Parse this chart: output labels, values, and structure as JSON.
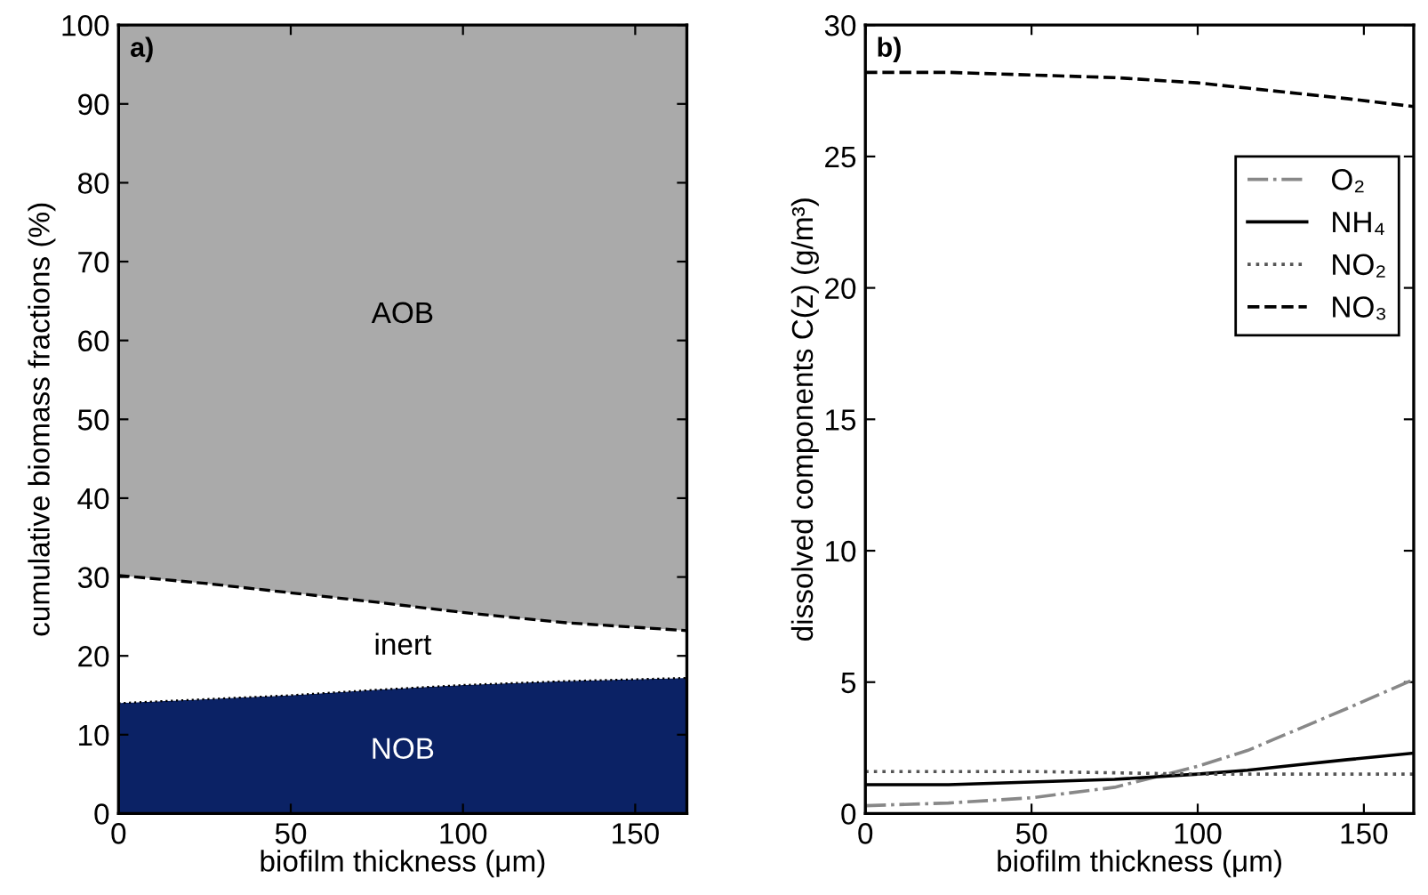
{
  "chart_data": [
    {
      "type": "area",
      "stacked": true,
      "xlabel": "biofilm thickness (μm)",
      "ylabel": "cumulative biomass fractions (%)",
      "annotations": [
        "a)"
      ],
      "x": [
        0,
        25,
        50,
        75,
        100,
        130,
        165
      ],
      "series": [
        {
          "name": "NOB",
          "color": "#0b2265",
          "values": [
            14,
            14.5,
            15,
            15.7,
            16.3,
            16.8,
            17.2
          ]
        },
        {
          "name": "inert",
          "color": "#ffffff",
          "values": [
            16.2,
            14.7,
            13,
            11.1,
            9.2,
            7.4,
            6.0
          ]
        },
        {
          "name": "AOB",
          "color": "#aaaaaa",
          "values": [
            69.8,
            70.8,
            72,
            73.2,
            74.5,
            75.8,
            76.8
          ]
        }
      ],
      "xlim": [
        0,
        165
      ],
      "xticks": [
        0,
        50,
        100,
        150
      ],
      "ylim": [
        0,
        100
      ],
      "yticks": [
        0,
        10,
        20,
        30,
        40,
        50,
        60,
        70,
        80,
        90,
        100
      ],
      "grid": false,
      "legend": false
    },
    {
      "type": "line",
      "xlabel": "biofilm thickness (μm)",
      "ylabel": "dissolved components C(z) (g/m³)",
      "annotations": [
        "b)"
      ],
      "x": [
        0,
        25,
        50,
        75,
        100,
        115,
        130,
        145,
        165
      ],
      "series": [
        {
          "name": "O₂",
          "color": "#888888",
          "line_style": "dashdot",
          "values": [
            0.3,
            0.4,
            0.6,
            1.0,
            1.8,
            2.4,
            3.2,
            4.0,
            5.1
          ]
        },
        {
          "name": "NH₄",
          "color": "#000000",
          "line_style": "solid",
          "values": [
            1.1,
            1.1,
            1.2,
            1.3,
            1.5,
            1.65,
            1.85,
            2.05,
            2.3
          ]
        },
        {
          "name": "NO₂",
          "color": "#555555",
          "line_style": "dotted",
          "values": [
            1.6,
            1.6,
            1.6,
            1.55,
            1.5,
            1.5,
            1.5,
            1.5,
            1.5
          ]
        },
        {
          "name": "NO₃",
          "color": "#000000",
          "line_style": "dashed",
          "values": [
            28.2,
            28.2,
            28.1,
            28.0,
            27.8,
            27.6,
            27.4,
            27.2,
            26.9
          ]
        }
      ],
      "xlim": [
        0,
        165
      ],
      "xticks": [
        0,
        50,
        100,
        150
      ],
      "ylim": [
        0,
        30
      ],
      "yticks": [
        0,
        5,
        10,
        15,
        20,
        25,
        30
      ],
      "grid": false,
      "legend": "right",
      "marker": "none"
    }
  ]
}
